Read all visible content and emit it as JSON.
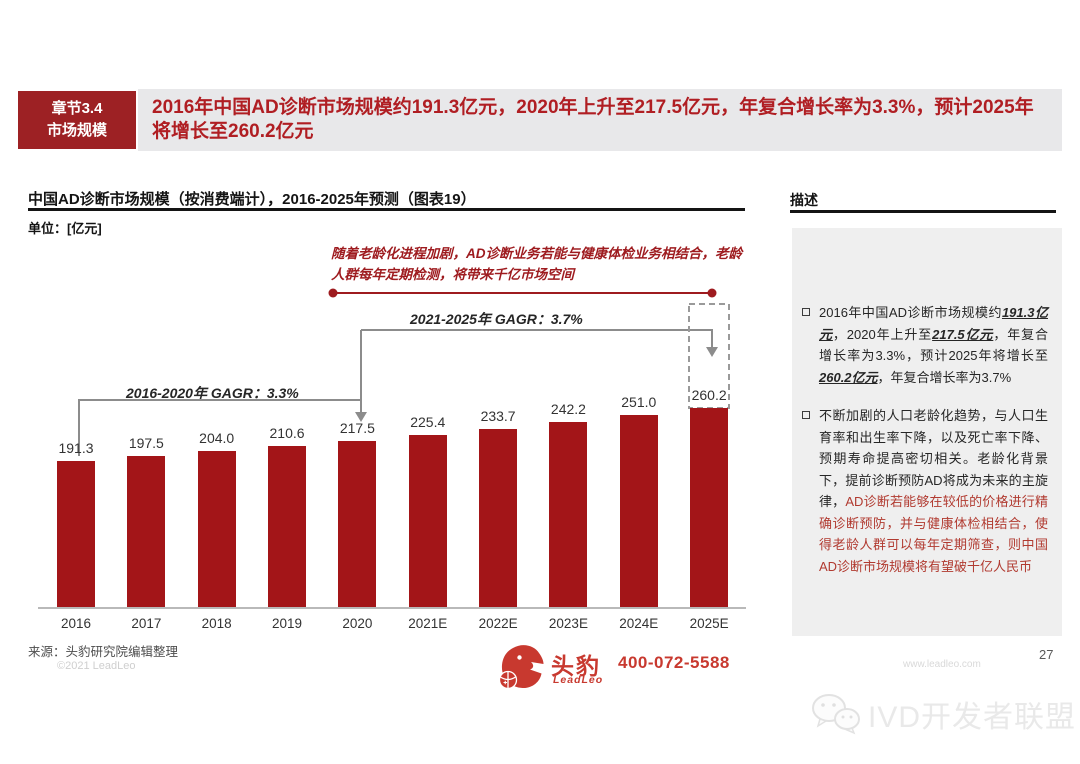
{
  "header": {
    "section_line1": "章节3.4",
    "section_line2": "市场规模",
    "title": "2016年中国AD诊断市场规模约191.3亿元，2020年上升至217.5亿元，年复合增长率为3.3%，预计2025年将增长至260.2亿元"
  },
  "chart_data": {
    "type": "bar",
    "title": "中国AD诊断市场规模（按消费端计），2016-2025年预测（图表19）",
    "unit_label": "单位：[亿元]",
    "ylabel": "亿元",
    "categories": [
      "2016",
      "2017",
      "2018",
      "2019",
      "2020",
      "2021E",
      "2022E",
      "2023E",
      "2024E",
      "2025E"
    ],
    "values": [
      191.3,
      197.5,
      204.0,
      210.6,
      217.5,
      225.4,
      233.7,
      242.2,
      251.0,
      260.2
    ],
    "labels": [
      "191.3",
      "197.5",
      "204.0",
      "210.6",
      "217.5",
      "225.4",
      "233.7",
      "242.2",
      "251.0",
      "260.2"
    ],
    "ylim": [
      0,
      280
    ],
    "grid": false,
    "legend": false,
    "bar_color": "#a31518",
    "highlighted_category": "2025E",
    "note": "随着老龄化进程加剧，AD诊断业务若能与健康体检业务相结合，老龄人群每年定期检测，将带来千亿市场空间",
    "cagr_2016_2020": "2016-2020年  GAGR：3.3%",
    "cagr_2021_2025": "2021-2025年  GAGR：3.7%"
  },
  "description": {
    "heading": "描述",
    "bullets": [
      {
        "segments": [
          {
            "text": "2016年中国AD诊断市场规模约",
            "style": "plain"
          },
          {
            "text": "191.3亿元",
            "style": "em"
          },
          {
            "text": "，2020年上升至",
            "style": "plain"
          },
          {
            "text": "217.5亿元",
            "style": "em"
          },
          {
            "text": "，年复合增长率为3.3%，预计2025年将增长至",
            "style": "plain"
          },
          {
            "text": "260.2亿元",
            "style": "em"
          },
          {
            "text": "，年复合增长率为3.7%",
            "style": "plain"
          }
        ]
      },
      {
        "segments": [
          {
            "text": "不断加剧的人口老龄化趋势，与人口生育率和出生率下降，以及死亡率下降、预期寿命提高密切相关。老龄化背景下，提前诊断预防AD将成为未来的主旋律，",
            "style": "plain"
          },
          {
            "text": "AD诊断若能够在较低的价格进行精确诊断预防，并与健康体检相结合，使得老龄人群可以每年定期筛查，则中国AD诊断市场规模将有望破千亿人民币",
            "style": "red"
          }
        ]
      }
    ]
  },
  "footer": {
    "source": "来源：头豹研究院编辑整理",
    "copyright": "©2021 LeadLeo",
    "logo_cn": "头豹",
    "logo_en": "LeadLeo",
    "phone": "400-072-5588",
    "page_number": "27",
    "website": "www.leadleo.com"
  },
  "watermark": {
    "text": "IVD开发者联盟"
  }
}
